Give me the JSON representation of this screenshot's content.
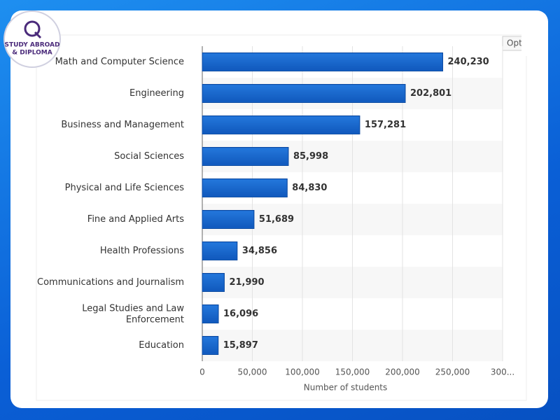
{
  "logo": {
    "lines": [
      "STUDY ABROAD",
      "& DIPLOMA"
    ]
  },
  "options_button": "Opt",
  "chart_data": {
    "type": "bar",
    "orientation": "horizontal",
    "categories": [
      "Math and Computer Science",
      "Engineering",
      "Business and Management",
      "Social Sciences",
      "Physical and Life Sciences",
      "Fine and Applied Arts",
      "Health Professions",
      "Communications and Journalism",
      "Legal Studies and Law Enforcement",
      "Education"
    ],
    "values": [
      240230,
      202801,
      157281,
      85998,
      84830,
      51689,
      34856,
      21990,
      16096,
      15897
    ],
    "value_labels": [
      "240,230",
      "202,801",
      "157,281",
      "85,998",
      "84,830",
      "51,689",
      "34,856",
      "21,990",
      "16,096",
      "15,897"
    ],
    "color": "#1665cc",
    "xlabel": "Number of students",
    "xlim": [
      0,
      300000
    ],
    "xticks": [
      0,
      {
        "value": 50000,
        "label": "50,000"
      },
      {
        "value": 100000,
        "label": "100,000"
      },
      {
        "value": 150000,
        "label": "150,000"
      },
      {
        "value": 200000,
        "label": "200,000"
      },
      {
        "value": 250000,
        "label": "250,000"
      },
      {
        "value": 300000,
        "label": "300..."
      }
    ],
    "grid": true
  }
}
